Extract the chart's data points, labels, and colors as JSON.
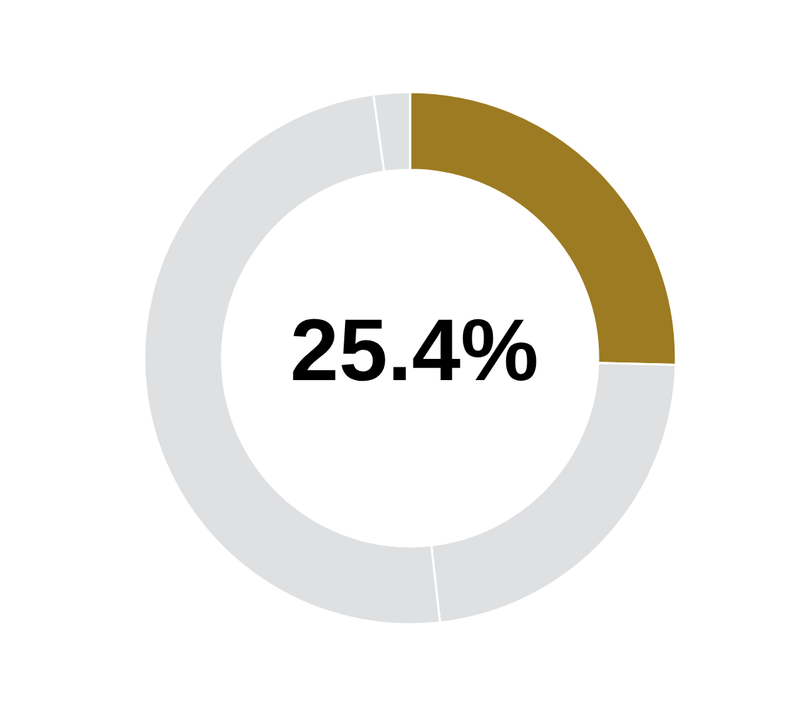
{
  "chart_data": {
    "type": "donut",
    "categories": [
      null,
      null,
      null,
      null
    ],
    "values": [
      25.4,
      22.8,
      49.6,
      2.2
    ],
    "colors": [
      "#9c7b22",
      "#dfe0e2",
      "#dfe0e2",
      "#dfe0e2"
    ],
    "annotations": [
      "25.4%"
    ],
    "legend": false
  }
}
